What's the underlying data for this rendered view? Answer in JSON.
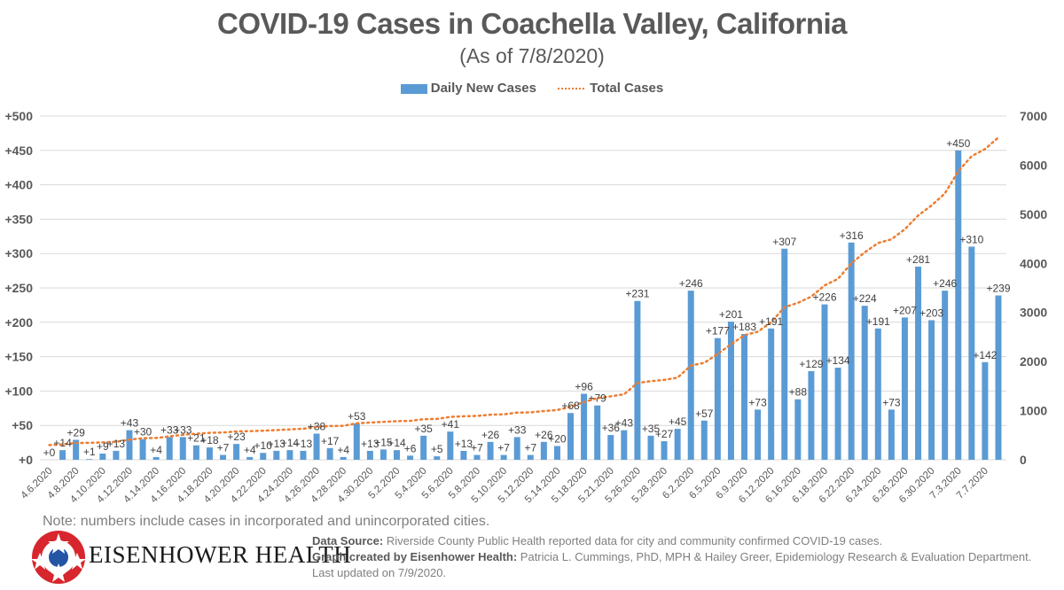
{
  "header": {
    "title": "COVID-19 Cases in Coachella Valley, California",
    "subtitle": "(As of 7/8/2020)"
  },
  "legend": {
    "bar_label": "Daily New Cases",
    "line_label": "Total Cases"
  },
  "colors": {
    "bar": "#5b9bd5",
    "line": "#ed7d31",
    "grid": "#d9d9d9",
    "text": "#595959"
  },
  "chart_data": {
    "type": "bar",
    "title": "COVID-19 Cases in Coachella Valley, California",
    "subtitle": "(As of 7/8/2020)",
    "xlabel": "",
    "ylabel": "",
    "ylim": [
      0,
      500
    ],
    "y2lim": [
      0,
      7000
    ],
    "grid": true,
    "legend_position": "top",
    "y_ticks": [
      "+0",
      "+50",
      "+100",
      "+150",
      "+200",
      "+250",
      "+300",
      "+350",
      "+400",
      "+450",
      "+500"
    ],
    "y2_ticks": [
      "0",
      "1000",
      "2000",
      "3000",
      "4000",
      "5000",
      "6000",
      "7000"
    ],
    "x_tick_labels": [
      "4.6.2020",
      "4.8.2020",
      "4.10.2020",
      "4.12.2020",
      "4.14.2020",
      "4.16.2020",
      "4.18.2020",
      "4.20.2020",
      "4.22.2020",
      "4.24.2020",
      "4.26.2020",
      "4.28.2020",
      "4.30.2020",
      "5.2.2020",
      "5.4.2020",
      "5.6.2020",
      "5.8.2020",
      "5.10.2020",
      "5.12.2020",
      "5.14.2020",
      "5.18.2020",
      "5.21.2020",
      "5.26.2020",
      "5.28.2020",
      "6.2.2020",
      "6.5.2020",
      "6.9.2020",
      "6.12.2020",
      "6.16.2020",
      "6.18.2020",
      "6.22.2020",
      "6.24.2020",
      "6.26.2020",
      "6.30.2020",
      "7.3.2020",
      "7.7.2020"
    ],
    "x_tick_every": 2,
    "series": [
      {
        "name": "Daily New Cases",
        "type": "bar",
        "axis": "left",
        "values": [
          0,
          14,
          29,
          1,
          9,
          13,
          43,
          30,
          4,
          33,
          33,
          21,
          18,
          7,
          23,
          4,
          10,
          13,
          14,
          13,
          38,
          17,
          4,
          53,
          13,
          15,
          14,
          6,
          35,
          5,
          41,
          13,
          7,
          26,
          7,
          33,
          7,
          26,
          20,
          68,
          96,
          79,
          36,
          43,
          231,
          35,
          27,
          45,
          246,
          57,
          177,
          201,
          183,
          73,
          191,
          307,
          88,
          129,
          226,
          134,
          316,
          224,
          191,
          73,
          207,
          281,
          203,
          246,
          450,
          310,
          142,
          239
        ]
      },
      {
        "name": "Total Cases",
        "type": "line",
        "style": "dotted",
        "axis": "right",
        "start_value": 300,
        "note": "cumulative of daily new cases starting from ~300"
      }
    ]
  },
  "footer": {
    "note": "Note: numbers include cases in incorporated and unincorporated cities.",
    "brand": "EISENHOWER HEALTH",
    "source_label": "Data Source:",
    "source_text": " Riverside County Public Health reported data for city and community confirmed COVID-19 cases.",
    "credit_label": "Graph created by Eisenhower Health:",
    "credit_text": " Patricia L. Cummings, PhD, MPH & Hailey Greer, Epidemiology Research & Evaluation Department. Last updated on 7/9/2020."
  }
}
